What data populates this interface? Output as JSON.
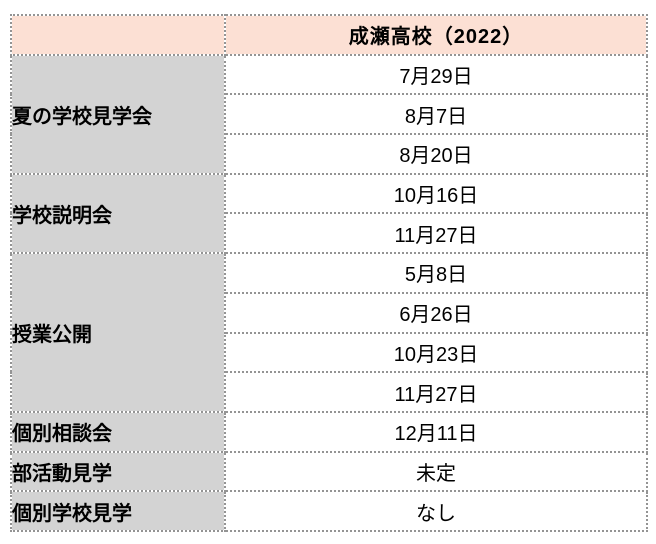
{
  "table": {
    "header": {
      "corner": "",
      "title": "成瀬高校（2022）"
    },
    "groups": [
      {
        "label": "夏の学校見学会",
        "values": [
          "7月29日",
          "8月7日",
          "8月20日"
        ]
      },
      {
        "label": "学校説明会",
        "values": [
          "10月16日",
          "11月27日"
        ]
      },
      {
        "label": "授業公開",
        "values": [
          "5月8日",
          "6月26日",
          "10月23日",
          "11月27日"
        ]
      },
      {
        "label": "個別相談会",
        "values": [
          "12月11日"
        ]
      },
      {
        "label": "部活動見学",
        "values": [
          "未定"
        ]
      },
      {
        "label": "個別学校見学",
        "values": [
          "なし"
        ]
      }
    ],
    "colors": {
      "header_bg": "#fce0d4",
      "label_bg": "#d3d3d3",
      "border": "#949494",
      "text": "#000000"
    }
  },
  "chart_data": {
    "type": "table",
    "title": "成瀬高校（2022）",
    "columns": [
      "",
      "成瀬高校（2022）"
    ],
    "rows": [
      [
        "夏の学校見学会",
        "7月29日"
      ],
      [
        "夏の学校見学会",
        "8月7日"
      ],
      [
        "夏の学校見学会",
        "8月20日"
      ],
      [
        "学校説明会",
        "10月16日"
      ],
      [
        "学校説明会",
        "11月27日"
      ],
      [
        "授業公開",
        "5月8日"
      ],
      [
        "授業公開",
        "6月26日"
      ],
      [
        "授業公開",
        "10月23日"
      ],
      [
        "授業公開",
        "11月27日"
      ],
      [
        "個別相談会",
        "12月11日"
      ],
      [
        "部活動見学",
        "未定"
      ],
      [
        "個別学校見学",
        "なし"
      ]
    ],
    "layout": {
      "merged_label_column": true,
      "grid": "dotted",
      "header_position": "top"
    }
  }
}
